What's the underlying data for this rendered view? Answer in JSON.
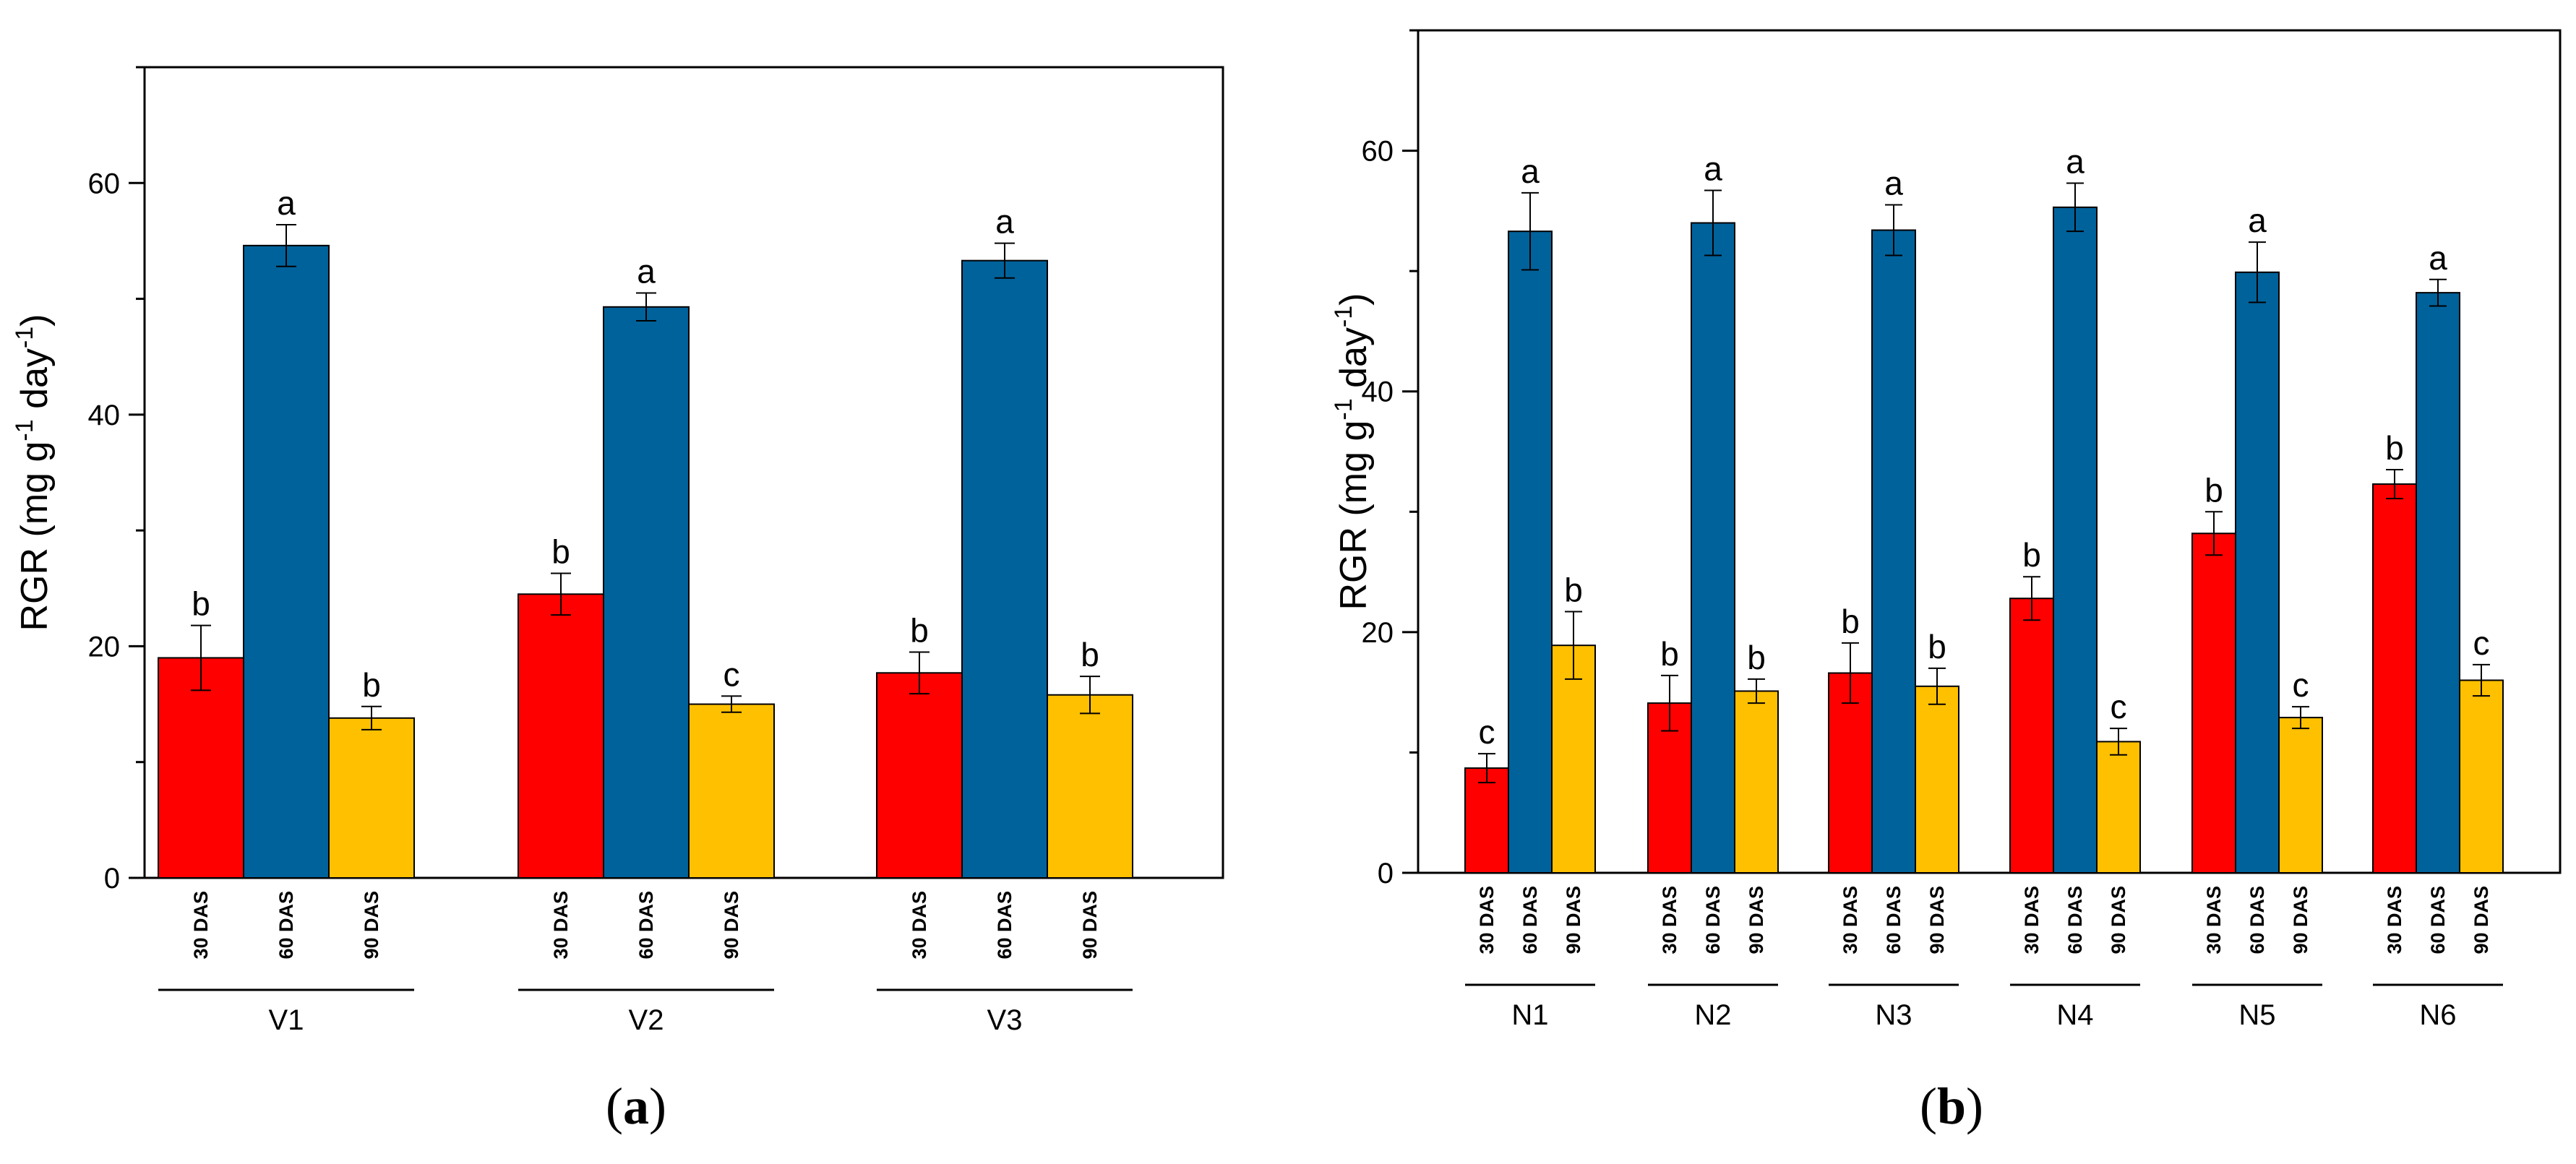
{
  "colors": {
    "30 DAS": "#ff0000",
    "60 DAS": "#00629b",
    "90 DAS": "#ffc000"
  },
  "chart_data": [
    {
      "type": "bar",
      "panel": "a",
      "panel_label": "(a)",
      "ylabel": "RGR (mg g-1 day-1)",
      "ylabel_parts": {
        "main": "RGR (mg g",
        "sup1": "-1",
        "mid": " day",
        "sup2": "-1",
        "end": ")"
      },
      "xlabel": "",
      "ylim": [
        0,
        70
      ],
      "yticks": [
        0,
        20,
        40,
        60
      ],
      "yticks_minor": [
        10,
        30,
        50,
        70
      ],
      "sub_categories": [
        "30 DAS",
        "60 DAS",
        "90 DAS"
      ],
      "groups": [
        {
          "name": "V1",
          "values": [
            19.0,
            54.6,
            13.8
          ],
          "errors": [
            2.8,
            1.8,
            1.0
          ],
          "letters": [
            "b",
            "a",
            "b"
          ]
        },
        {
          "name": "V2",
          "values": [
            24.5,
            49.3,
            15.0
          ],
          "errors": [
            1.8,
            1.2,
            0.7
          ],
          "letters": [
            "b",
            "a",
            "c"
          ]
        },
        {
          "name": "V3",
          "values": [
            17.7,
            53.3,
            15.8
          ],
          "errors": [
            1.8,
            1.5,
            1.6
          ],
          "letters": [
            "b",
            "a",
            "b"
          ]
        }
      ]
    },
    {
      "type": "bar",
      "panel": "b",
      "panel_label": "(b)",
      "ylabel": "RGR (mg g-1 day-1)",
      "ylabel_parts": {
        "main": "RGR (mg g",
        "sup1": "-1",
        "mid": " day",
        "sup2": "-1",
        "end": ")"
      },
      "xlabel": "",
      "ylim": [
        0,
        70
      ],
      "yticks": [
        0,
        20,
        40,
        60
      ],
      "yticks_minor": [
        10,
        30,
        50,
        70
      ],
      "sub_categories": [
        "30 DAS",
        "60 DAS",
        "90 DAS"
      ],
      "groups": [
        {
          "name": "N1",
          "values": [
            8.7,
            53.3,
            18.9
          ],
          "errors": [
            1.2,
            3.2,
            2.8
          ],
          "letters": [
            "c",
            "a",
            "b"
          ]
        },
        {
          "name": "N2",
          "values": [
            14.1,
            54.0,
            15.1
          ],
          "errors": [
            2.3,
            2.7,
            1.0
          ],
          "letters": [
            "b",
            "a",
            "b"
          ]
        },
        {
          "name": "N3",
          "values": [
            16.6,
            53.4,
            15.5
          ],
          "errors": [
            2.5,
            2.1,
            1.5
          ],
          "letters": [
            "b",
            "a",
            "b"
          ]
        },
        {
          "name": "N4",
          "values": [
            22.8,
            55.3,
            10.9
          ],
          "errors": [
            1.8,
            2.0,
            1.1
          ],
          "letters": [
            "b",
            "a",
            "c"
          ]
        },
        {
          "name": "N5",
          "values": [
            28.2,
            49.9,
            12.9
          ],
          "errors": [
            1.8,
            2.5,
            0.9
          ],
          "letters": [
            "b",
            "a",
            "c"
          ]
        },
        {
          "name": "N6",
          "values": [
            32.3,
            48.2,
            16.0
          ],
          "errors": [
            1.2,
            1.1,
            1.3
          ],
          "letters": [
            "b",
            "a",
            "c"
          ]
        }
      ]
    }
  ]
}
